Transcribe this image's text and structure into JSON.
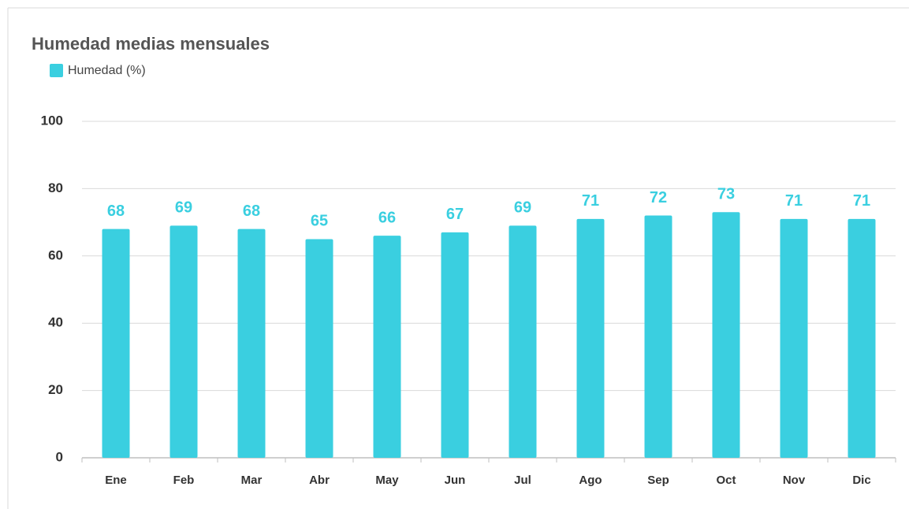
{
  "chart_data": {
    "type": "bar",
    "title": "Humedad medias mensuales",
    "series": [
      {
        "name": "Humedad (%)",
        "color": "#3acfe0",
        "values": [
          68,
          69,
          68,
          65,
          66,
          67,
          69,
          71,
          72,
          73,
          71,
          71
        ]
      }
    ],
    "categories": [
      "Ene",
      "Feb",
      "Mar",
      "Abr",
      "May",
      "Jun",
      "Jul",
      "Ago",
      "Sep",
      "Oct",
      "Nov",
      "Dic"
    ],
    "ylim": [
      0,
      100
    ],
    "yticks": [
      0,
      20,
      40,
      60,
      80,
      100
    ],
    "grid": true,
    "legend": "top-left"
  }
}
